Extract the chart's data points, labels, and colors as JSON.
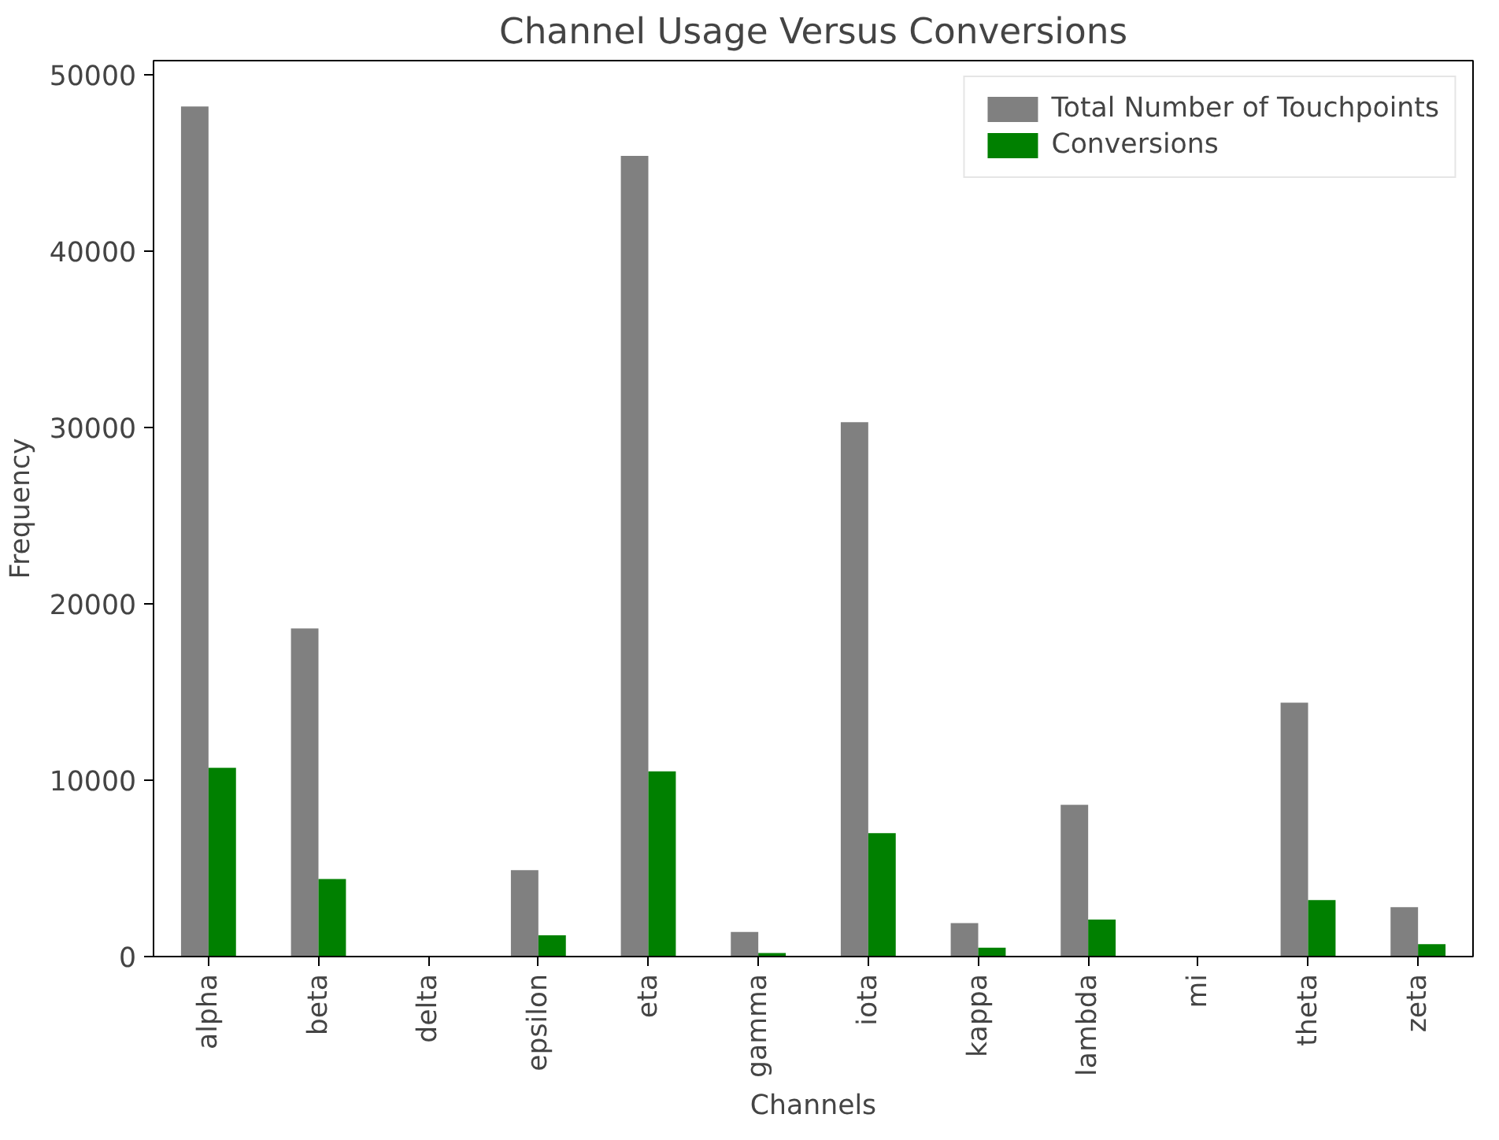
{
  "chart_data": {
    "type": "bar",
    "title": "Channel Usage Versus Conversions",
    "xlabel": "Channels",
    "ylabel": "Frequency",
    "categories": [
      "alpha",
      "beta",
      "delta",
      "epsilon",
      "eta",
      "gamma",
      "iota",
      "kappa",
      "lambda",
      "mi",
      "theta",
      "zeta"
    ],
    "series": [
      {
        "name": "Total Number of Touchpoints",
        "color": "#808080",
        "values": [
          48200,
          18600,
          0,
          4900,
          45400,
          1400,
          30300,
          1900,
          8600,
          0,
          14400,
          2800
        ]
      },
      {
        "name": "Conversions",
        "color": "#008000",
        "values": [
          10700,
          4400,
          0,
          1200,
          10500,
          200,
          7000,
          500,
          2100,
          0,
          3200,
          700
        ]
      }
    ],
    "ylim": [
      0,
      50800
    ],
    "yticks": [
      0,
      10000,
      20000,
      30000,
      40000,
      50000
    ],
    "grid": false,
    "legend": "top right"
  }
}
